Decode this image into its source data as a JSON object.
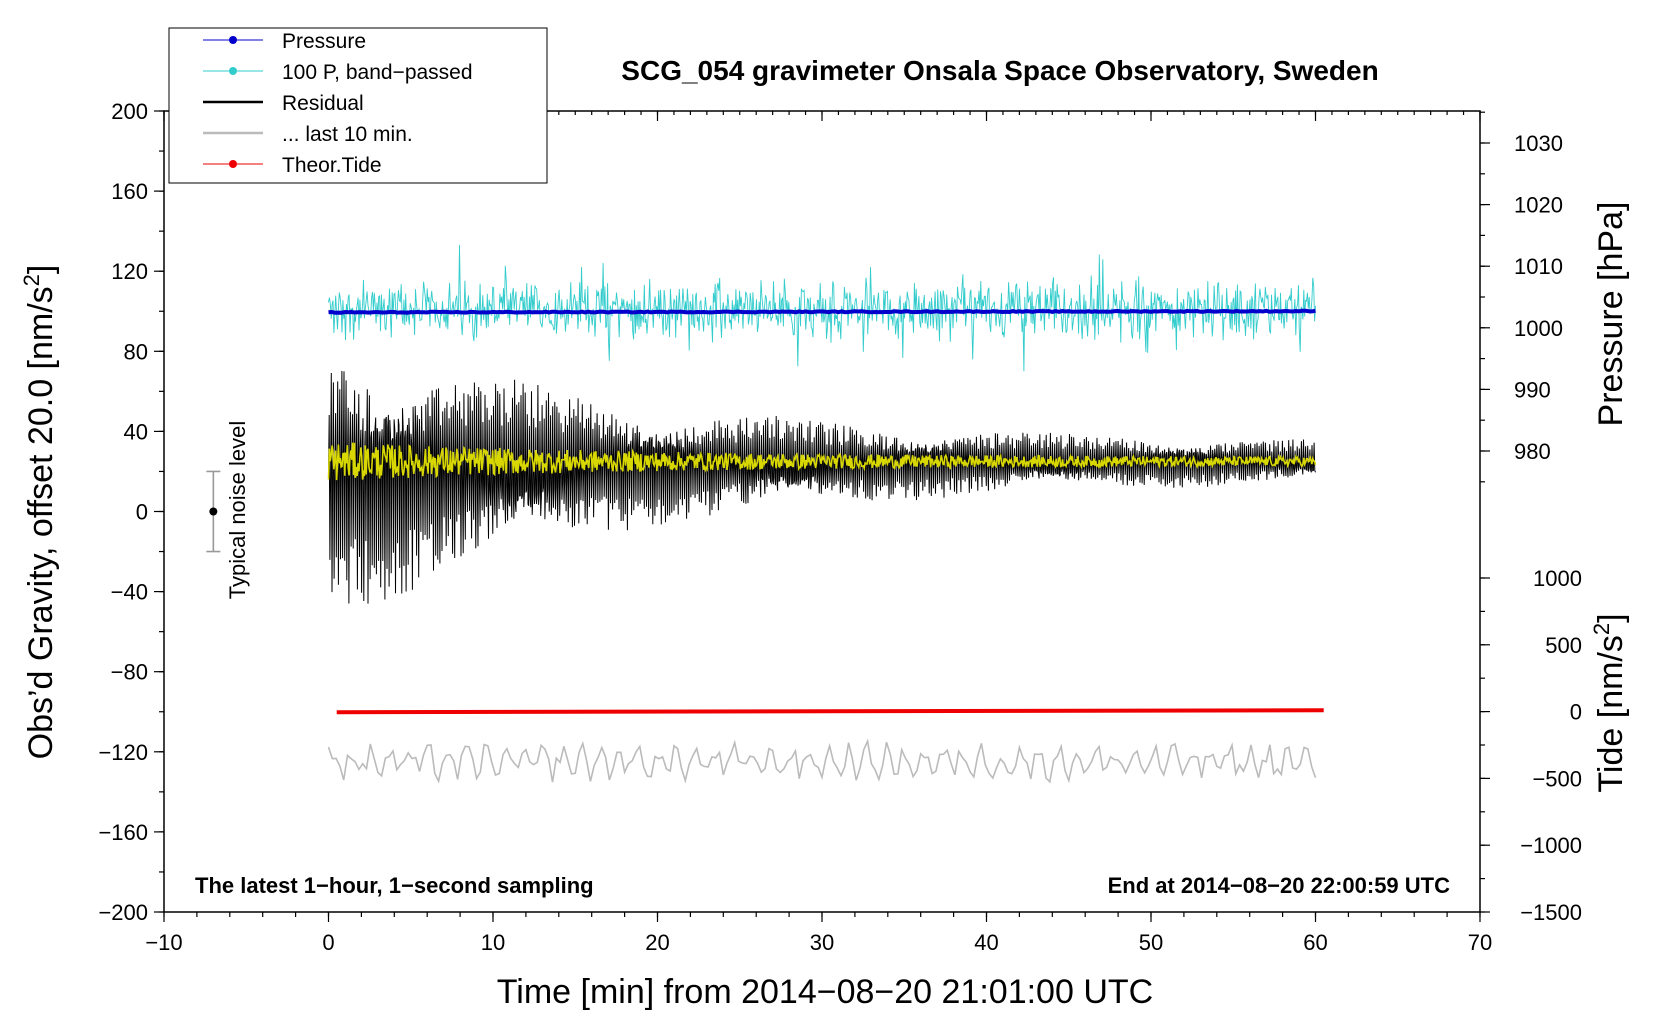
{
  "chart_data": {
    "type": "line",
    "title": "SCG_054 gravimeter Onsala Space Observatory, Sweden",
    "xlabel": "Time [min] from 2014−08−20 21:01:00 UTC",
    "ylabel_left_main": "Obs’d Gravity, offset 20.0 [nm/s",
    "ylabel_left_sup": "2",
    "ylabel_left_end": "]",
    "ylabel_right_pressure": "Pressure [hPa]",
    "ylabel_right_tide_main": "Tide [nm/s",
    "ylabel_right_tide_sup": "2",
    "ylabel_right_tide_end": "]",
    "xlim": [
      -10,
      70
    ],
    "ylim_left": [
      -200,
      200
    ],
    "ylim_pressure": [
      970,
      1035
    ],
    "ylim_tide": [
      -1500,
      1500
    ],
    "x_ticks": [
      "−10",
      "0",
      "10",
      "20",
      "30",
      "40",
      "50",
      "60",
      "70"
    ],
    "y_left_ticks": [
      "200",
      "160",
      "120",
      "80",
      "40",
      "0",
      "−40",
      "−80",
      "−120",
      "−160",
      "−200"
    ],
    "y_pressure_ticks": [
      "1030",
      "1020",
      "1010",
      "1000",
      "990",
      "980"
    ],
    "y_tide_ticks": [
      "1000",
      "500",
      "0",
      "−500",
      "−1000",
      "−1500"
    ],
    "annotations": {
      "bottom_left": "The latest 1−hour, 1−second sampling",
      "bottom_right": "End at 2014−08−20 22:00:59 UTC",
      "noise_label": "Typical noise level"
    },
    "noise_bar": {
      "x": -7,
      "center": 0,
      "half_range": 20
    },
    "series": [
      {
        "name": "Pressure",
        "color": "#0000cc",
        "axis": "pressure",
        "x_range": [
          0,
          60
        ],
        "level": 1002.5,
        "trend": 0.2
      },
      {
        "name": "100 P, band−passed",
        "color": "#33cccc",
        "axis": "left",
        "x_range": [
          0,
          60
        ],
        "center": 101,
        "amplitude": 12
      },
      {
        "name": "Residual",
        "color": "#000000",
        "axis": "left",
        "x_range": [
          0,
          60
        ],
        "center": 25,
        "amplitude_start": 60,
        "amplitude_end": 8
      },
      {
        "name": "... last 10 min.",
        "color": "#bbbbbb",
        "axis": "left",
        "x_range": [
          0,
          60
        ],
        "center": -125,
        "amplitude": 8
      },
      {
        "name": "Theor.Tide",
        "color": "#ee0000",
        "axis": "tide",
        "x_range": [
          0.5,
          60.5
        ],
        "start": -5,
        "end": 10
      }
    ],
    "smoothed_residual": {
      "color": "#d8d800",
      "center": 25,
      "amplitude_start": 8,
      "amplitude_end": 2
    }
  }
}
